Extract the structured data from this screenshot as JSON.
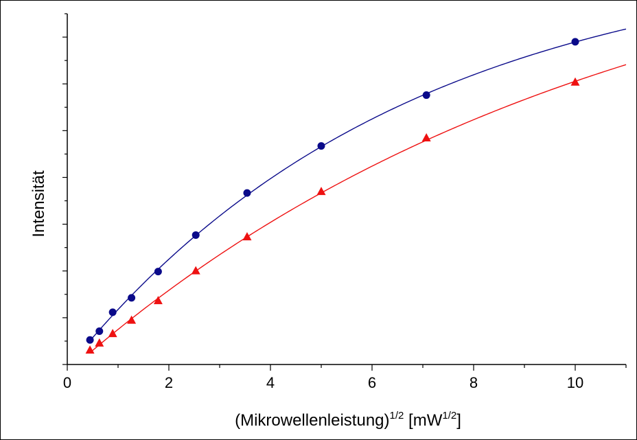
{
  "chart_data": {
    "type": "scatter",
    "xlabel_parts": [
      "(Mikrowellenleistung)",
      "1/2",
      " [mW",
      "1/2",
      "]"
    ],
    "ylabel": "Intensität",
    "xlim": [
      0,
      11
    ],
    "ylim": [
      0,
      1.0
    ],
    "x_ticks": [
      0,
      2,
      4,
      6,
      8,
      10
    ],
    "x_tick_labels": [
      "0",
      "2",
      "4",
      "6",
      "8",
      "10"
    ],
    "y_tick_labels_visible": false,
    "grid": false,
    "series": [
      {
        "marker": "circle",
        "color": "#0a0a8a",
        "fit_color": "#0a0a8a",
        "x": [
          0.447,
          0.632,
          0.894,
          1.265,
          1.789,
          2.53,
          3.54,
          5.0,
          7.07,
          10.0
        ],
        "y": [
          0.07,
          0.095,
          0.149,
          0.19,
          0.265,
          0.369,
          0.489,
          0.623,
          0.768,
          0.92
        ]
      },
      {
        "marker": "triangle",
        "color": "#ee1111",
        "fit_color": "#ee1111",
        "x": [
          0.447,
          0.632,
          0.894,
          1.265,
          1.789,
          2.53,
          3.54,
          5.0,
          7.07,
          10.0
        ],
        "y": [
          0.04,
          0.06,
          0.087,
          0.125,
          0.181,
          0.266,
          0.363,
          0.492,
          0.645,
          0.804
        ]
      }
    ]
  }
}
